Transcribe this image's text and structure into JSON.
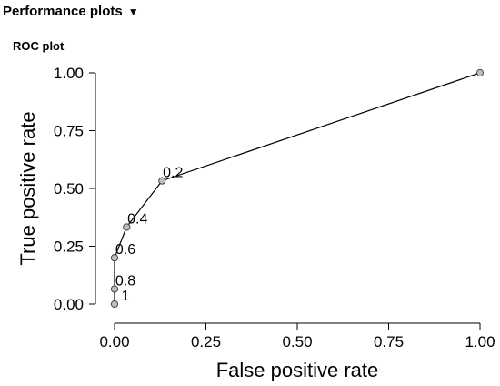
{
  "section": {
    "title": "Performance plots",
    "toggle_icon": "triangle-down-icon"
  },
  "chart_data": {
    "type": "line",
    "title": "ROC plot",
    "xlabel": "False positive rate",
    "ylabel": "True positive rate",
    "xlim": [
      0,
      1
    ],
    "ylim": [
      0,
      1
    ],
    "xticks": [
      "0.00",
      "0.25",
      "0.50",
      "0.75",
      "1.00"
    ],
    "yticks": [
      "0.00",
      "0.25",
      "0.50",
      "0.75",
      "1.00"
    ],
    "grid": false,
    "points": [
      {
        "x": 0.0,
        "y": 0.0,
        "label": "1"
      },
      {
        "x": 0.0,
        "y": 0.065,
        "label": "0.8"
      },
      {
        "x": 0.0,
        "y": 0.2,
        "label": "0.6"
      },
      {
        "x": 0.033,
        "y": 0.333,
        "label": "0.4"
      },
      {
        "x": 0.13,
        "y": 0.533,
        "label": "0.2"
      },
      {
        "x": 1.0,
        "y": 1.0,
        "label": ""
      }
    ],
    "marker_color": "#bdbdbd",
    "line_color": "#000000"
  }
}
